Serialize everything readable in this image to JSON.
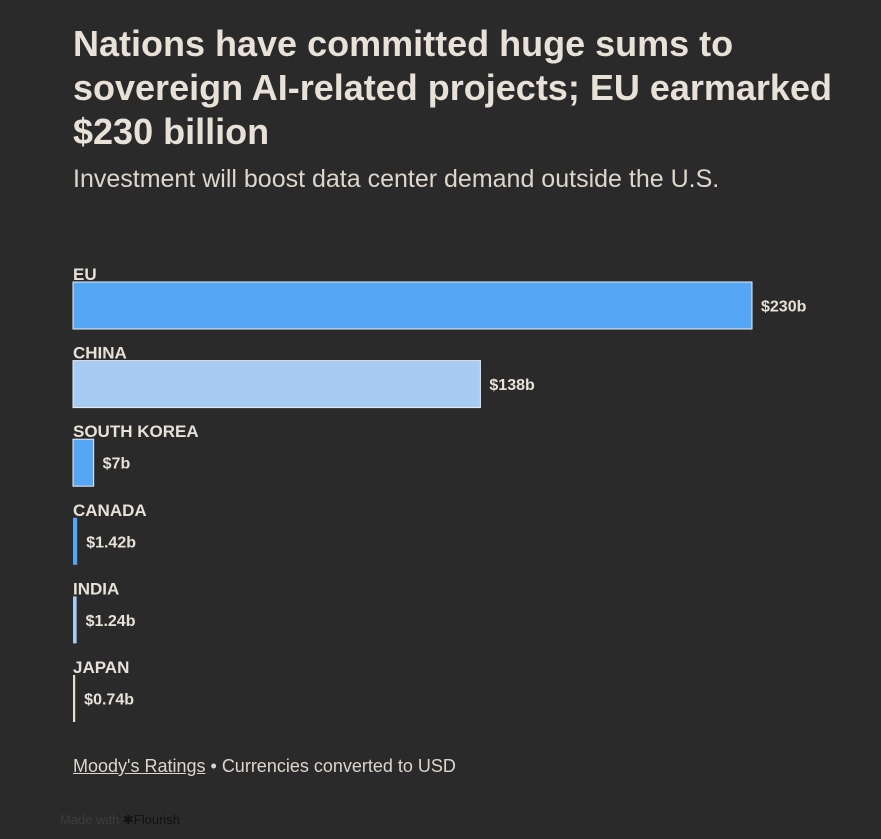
{
  "header": {
    "title": "Nations have committed huge sums to sovereign AI-related projects; EU earmarked $230 billion",
    "subtitle": "Investment will boost data center demand outside the U.S."
  },
  "chart_data": {
    "type": "bar",
    "orientation": "horizontal",
    "title": "Nations have committed huge sums to sovereign AI-related projects; EU earmarked $230 billion",
    "subtitle": "Investment will boost data center demand outside the U.S.",
    "xlabel": "",
    "ylabel": "",
    "unit": "billion USD",
    "xlim": [
      0,
      230
    ],
    "grid": false,
    "categories": [
      "EU",
      "CHINA",
      "SOUTH KOREA",
      "CANADA",
      "INDIA",
      "JAPAN"
    ],
    "values": [
      230,
      138,
      7,
      1.42,
      1.24,
      0.74
    ],
    "value_labels": [
      "$230b",
      "$138b",
      "$7b",
      "$1.42b",
      "$1.24b",
      "$0.74b"
    ],
    "colors": [
      "#55a7f6",
      "#a7cbf2",
      "#55a7f6",
      "#55a7f6",
      "#a7cbf2",
      "#e8dfc8"
    ]
  },
  "footer": {
    "source_link": "Moody's Ratings",
    "separator": " • ",
    "note": "Currencies converted to USD"
  },
  "attribution": {
    "prefix": "Made with",
    "icon": "asterisk-icon",
    "brand": "Flourish"
  }
}
